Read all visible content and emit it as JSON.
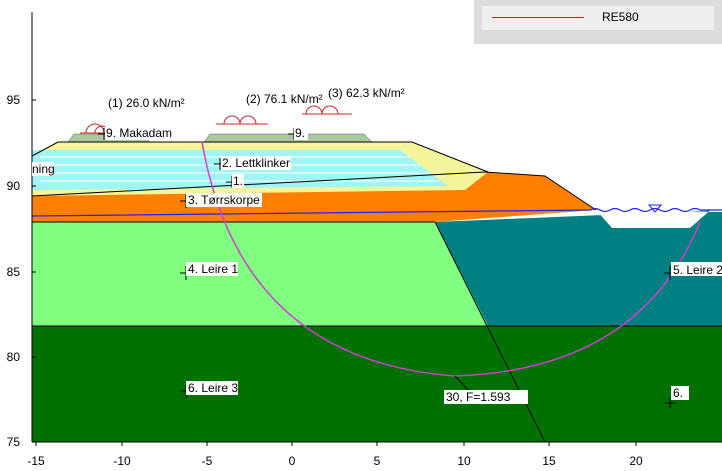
{
  "legend": {
    "label": "RE580",
    "color": "#d42020"
  },
  "y_axis": {
    "ticks": [
      "95",
      "90",
      "85",
      "80",
      "75"
    ]
  },
  "x_axis": {
    "ticks": [
      "-15",
      "-10",
      "-5",
      "0",
      "5",
      "10",
      "15",
      "20"
    ]
  },
  "colors": {
    "makadam": "#a8c8a0",
    "lettklinker": "#a0f4f4",
    "embankment_edge": "#f4f49a",
    "torrskorpe": "#ff8000",
    "leire1": "#80ff80",
    "leire2": "#008080",
    "leire3": "#007000",
    "slip_circle": "#d040d0",
    "load_symbol": "#d42020",
    "water": "#2020ff"
  },
  "loads": [
    {
      "label": "(1) 26.0  kN/m²"
    },
    {
      "label": "(2) 76.1  kN/m²"
    },
    {
      "label": "(3) 62.3  kN/m²"
    }
  ],
  "layer_labels": {
    "makadam": "9. Makadam",
    "makadam2": "9.",
    "lettklinker": "2. Lettklinker",
    "lettklinker2": "1.",
    "left_clipped": "ning",
    "torrskorpe": "3. Tørrskorpe",
    "leire1": "4. Leire 1",
    "leire2": "5. Leire 2",
    "leire3": "6. Leire 3",
    "leire3_right": "6."
  },
  "slip_result": {
    "label": "30, F=1.593"
  }
}
